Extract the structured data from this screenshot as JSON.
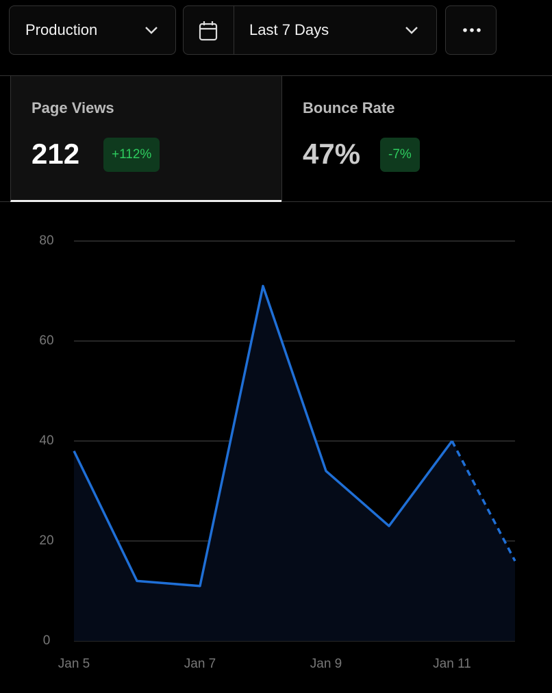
{
  "toolbar": {
    "environment": "Production",
    "date_range": "Last 7 Days"
  },
  "metrics": [
    {
      "label": "Page Views",
      "value": "212",
      "change": "+112%"
    },
    {
      "label": "Bounce Rate",
      "value": "47%",
      "change": "-7%"
    }
  ],
  "chart_data": {
    "type": "area",
    "categories": [
      "Jan 5",
      null,
      "Jan 7",
      null,
      "Jan 9",
      null,
      "Jan 11",
      null
    ],
    "values": [
      38,
      12,
      11,
      71,
      34,
      23,
      40,
      16
    ],
    "color": "#1f6fd6",
    "fill": "#050b18",
    "ylim": [
      0,
      80
    ],
    "yticks": [
      0,
      20,
      40,
      60,
      80
    ],
    "grid": true,
    "dashed_last_segment": true
  }
}
